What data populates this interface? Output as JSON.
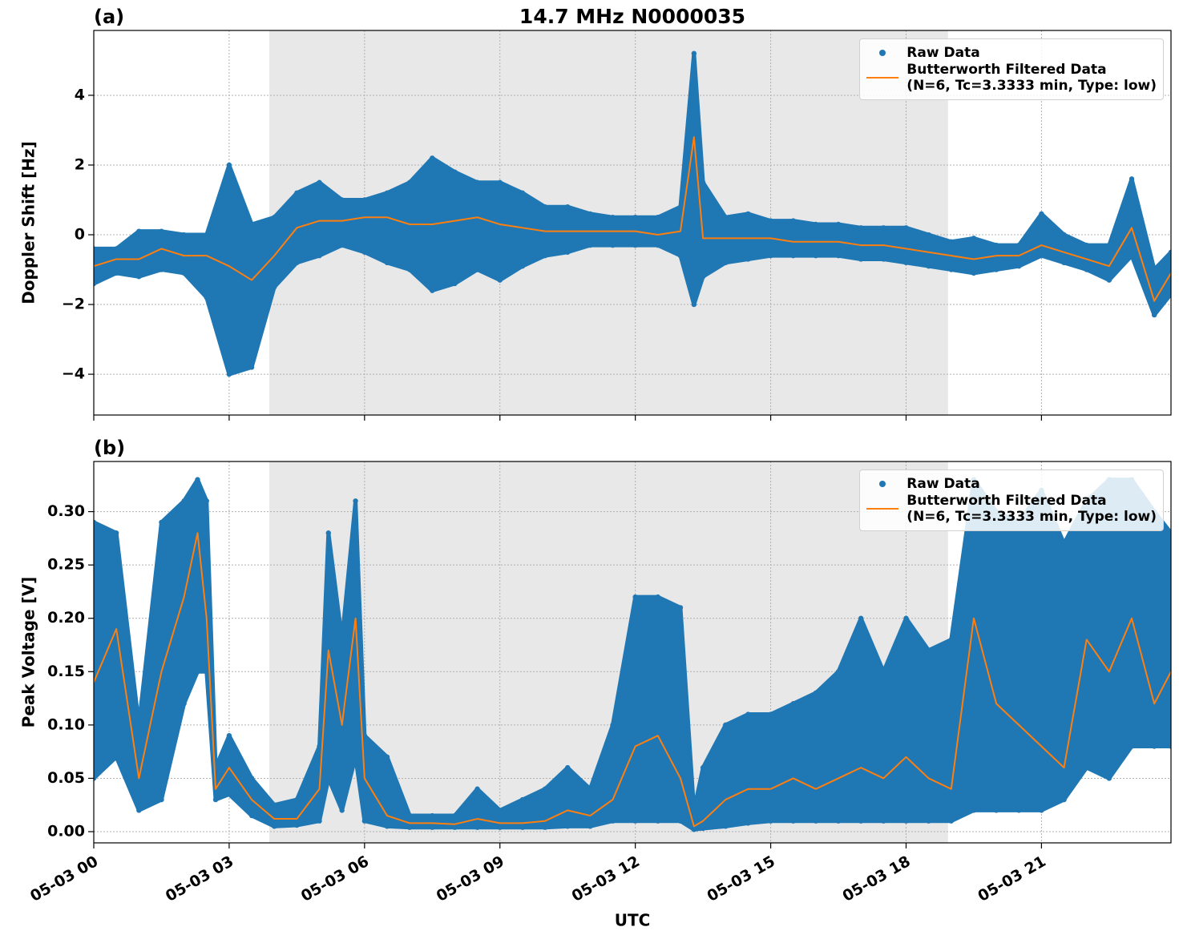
{
  "chart_data": [
    {
      "type": "scatter",
      "panel_label": "(a)",
      "title": "14.7 MHz N0000035",
      "ylabel": "Doppler Shift [Hz]",
      "xlim": [
        0,
        23.87
      ],
      "xticks": [
        0,
        3,
        6,
        9,
        12,
        15,
        18,
        21
      ],
      "ylim": [
        -5.17,
        5.86
      ],
      "yticks": [
        {
          "value": -4,
          "label": "−4"
        },
        {
          "value": -2,
          "label": "−2"
        },
        0,
        2,
        4
      ],
      "grid": true,
      "legend": "upper right",
      "shaded_span": [
        3.89,
        18.93
      ],
      "shade_color": "#e8e8e8",
      "series": [
        {
          "name": "Raw Data",
          "color": "#1f77b4",
          "marker": "dot",
          "x": [
            0,
            0.5,
            1,
            1.5,
            2,
            2.5,
            3,
            3.5,
            4,
            4.5,
            5,
            5.5,
            6,
            6.5,
            7,
            7.5,
            8,
            8.5,
            9,
            9.5,
            10,
            10.5,
            11,
            11.5,
            12,
            12.5,
            13,
            13.3,
            13.5,
            14,
            14.5,
            15,
            15.5,
            16,
            16.5,
            17,
            17.5,
            18,
            18.5,
            19,
            19.5,
            20,
            20.5,
            21,
            21.5,
            22,
            22.5,
            23,
            23.5,
            23.87,
            23.87,
            23.5,
            23,
            22.5,
            22,
            21.5,
            21,
            20.5,
            20,
            19.5,
            19,
            18.5,
            18,
            17.5,
            17,
            16.5,
            16,
            15.5,
            15,
            14.5,
            14,
            13.5,
            13.3,
            13,
            12.5,
            12,
            11.5,
            11,
            10.5,
            10,
            9.5,
            9,
            8.5,
            8,
            7.5,
            7,
            6.5,
            6,
            5.5,
            5,
            4.5,
            4,
            3.5,
            3,
            2.5,
            2,
            1.5,
            1,
            0.5,
            0
          ],
          "values": [
            -0.4,
            -0.4,
            0.1,
            0.1,
            0,
            0,
            2,
            0.3,
            0.5,
            1.2,
            1.5,
            1,
            1,
            1.2,
            1.5,
            2.2,
            1.8,
            1.5,
            1.5,
            1.2,
            0.8,
            0.8,
            0.6,
            0.5,
            0.5,
            0.5,
            0.8,
            5.2,
            1.5,
            0.5,
            0.6,
            0.4,
            0.4,
            0.3,
            0.3,
            0.2,
            0.2,
            0.2,
            0,
            -0.2,
            -0.1,
            -0.3,
            -0.3,
            0.6,
            0,
            -0.3,
            -0.3,
            1.6,
            -1,
            -0.5,
            -1.7,
            -2.3,
            -0.6,
            -1.3,
            -1,
            -0.8,
            -0.6,
            -0.9,
            -1,
            -1.1,
            -1,
            -0.9,
            -0.8,
            -0.7,
            -0.7,
            -0.6,
            -0.6,
            -0.6,
            -0.6,
            -0.7,
            -0.8,
            -1.2,
            -2,
            -0.6,
            -0.3,
            -0.3,
            -0.3,
            -0.3,
            -0.5,
            -0.6,
            -0.9,
            -1.3,
            -1,
            -1.4,
            -1.6,
            -1,
            -0.8,
            -0.5,
            -0.3,
            -0.6,
            -0.8,
            -1.5,
            -3.8,
            -4,
            -1.8,
            -1.1,
            -1,
            -1.2,
            -1.1,
            -1.4
          ]
        },
        {
          "name": "Butterworth Filtered Data\n(N=6, Tc=3.3333 min, Type: low)",
          "color": "#ff7f0e",
          "marker": "line",
          "x": [
            0,
            0.5,
            1,
            1.5,
            2,
            2.5,
            3,
            3.5,
            4,
            4.5,
            5,
            5.5,
            6,
            6.5,
            7,
            7.5,
            8,
            8.5,
            9,
            9.5,
            10,
            10.5,
            11,
            11.5,
            12,
            12.5,
            13,
            13.3,
            13.5,
            14,
            14.5,
            15,
            15.5,
            16,
            16.5,
            17,
            17.5,
            18,
            18.5,
            19,
            19.5,
            20,
            20.5,
            21,
            21.5,
            22,
            22.5,
            23,
            23.5,
            23.87
          ],
          "values": [
            -0.9,
            -0.7,
            -0.7,
            -0.4,
            -0.6,
            -0.6,
            -0.9,
            -1.3,
            -0.6,
            0.2,
            0.4,
            0.4,
            0.5,
            0.5,
            0.3,
            0.3,
            0.4,
            0.5,
            0.3,
            0.2,
            0.1,
            0.1,
            0.1,
            0.1,
            0.1,
            0,
            0.1,
            2.8,
            -0.1,
            -0.1,
            -0.1,
            -0.1,
            -0.2,
            -0.2,
            -0.2,
            -0.3,
            -0.3,
            -0.4,
            -0.5,
            -0.6,
            -0.7,
            -0.6,
            -0.6,
            -0.3,
            -0.5,
            -0.7,
            -0.9,
            0.2,
            -1.9,
            -1.1
          ]
        }
      ]
    },
    {
      "type": "scatter",
      "panel_label": "(b)",
      "ylabel": "Peak Voltage [V]",
      "xlabel": "UTC",
      "xlim": [
        0,
        23.87
      ],
      "xticks": [
        {
          "value": 0,
          "label": "05-03 00"
        },
        {
          "value": 3,
          "label": "05-03 03"
        },
        {
          "value": 6,
          "label": "05-03 06"
        },
        {
          "value": 9,
          "label": "05-03 09"
        },
        {
          "value": 12,
          "label": "05-03 12"
        },
        {
          "value": 15,
          "label": "05-03 15"
        },
        {
          "value": 18,
          "label": "05-03 18"
        },
        {
          "value": 21,
          "label": "05-03 21"
        }
      ],
      "ylim": [
        -0.0105,
        0.347
      ],
      "yticks": [
        {
          "value": 0,
          "label": "0.00"
        },
        0.05,
        {
          "value": 0.1,
          "label": "0.10"
        },
        0.15,
        {
          "value": 0.2,
          "label": "0.20"
        },
        0.25,
        {
          "value": 0.3,
          "label": "0.30"
        }
      ],
      "grid": true,
      "legend": "upper right",
      "shaded_span": [
        3.89,
        18.93
      ],
      "shade_color": "#e8e8e8",
      "series": [
        {
          "name": "Raw Data",
          "color": "#1f77b4",
          "marker": "dot",
          "x": [
            0,
            0.5,
            1,
            1.5,
            2,
            2.3,
            2.5,
            2.7,
            3,
            3.5,
            4,
            4.5,
            5,
            5.2,
            5.5,
            5.8,
            6,
            6.5,
            7,
            7.5,
            8,
            8.5,
            9,
            9.5,
            10,
            10.5,
            11,
            11.5,
            12,
            12.5,
            13,
            13.3,
            13.5,
            14,
            14.5,
            15,
            15.5,
            16,
            16.5,
            17,
            17.5,
            18,
            18.5,
            19,
            19.5,
            20,
            20.5,
            21,
            21.5,
            22,
            22.5,
            23,
            23.5,
            23.87,
            23.87,
            23.5,
            23,
            22.5,
            22,
            21.5,
            21,
            20.5,
            20,
            19.5,
            19,
            18.5,
            18,
            17.5,
            17,
            16.5,
            16,
            15.5,
            15,
            14.5,
            14,
            13.5,
            13.3,
            13,
            12.5,
            12,
            11.5,
            11,
            10.5,
            10,
            9.5,
            9,
            8.5,
            8,
            7.5,
            7,
            6.5,
            6,
            5.8,
            5.5,
            5.2,
            5,
            4.5,
            4,
            3.5,
            3,
            2.7,
            2.5,
            2.3,
            2,
            1.5,
            1,
            0.5,
            0
          ],
          "values": [
            0.29,
            0.28,
            0.1,
            0.29,
            0.31,
            0.33,
            0.31,
            0.06,
            0.09,
            0.05,
            0.025,
            0.03,
            0.08,
            0.28,
            0.18,
            0.31,
            0.09,
            0.07,
            0.015,
            0.015,
            0.015,
            0.04,
            0.02,
            0.03,
            0.04,
            0.06,
            0.04,
            0.1,
            0.22,
            0.22,
            0.21,
            0.02,
            0.06,
            0.1,
            0.11,
            0.11,
            0.12,
            0.13,
            0.15,
            0.2,
            0.15,
            0.2,
            0.17,
            0.18,
            0.33,
            0.3,
            0.29,
            0.32,
            0.27,
            0.31,
            0.33,
            0.33,
            0.3,
            0.28,
            0.08,
            0.08,
            0.08,
            0.05,
            0.06,
            0.03,
            0.02,
            0.02,
            0.02,
            0.02,
            0.01,
            0.01,
            0.01,
            0.01,
            0.01,
            0.01,
            0.01,
            0.01,
            0.01,
            0.008,
            0.005,
            0.003,
            0.002,
            0.01,
            0.01,
            0.01,
            0.01,
            0.005,
            0.005,
            0.004,
            0.004,
            0.004,
            0.004,
            0.004,
            0.004,
            0.004,
            0.005,
            0.01,
            0.07,
            0.02,
            0.05,
            0.01,
            0.006,
            0.005,
            0.015,
            0.035,
            0.03,
            0.15,
            0.15,
            0.12,
            0.03,
            0.02,
            0.07,
            0.05
          ]
        },
        {
          "name": "Butterworth Filtered Data\n(N=6, Tc=3.3333 min, Type: low)",
          "color": "#ff7f0e",
          "marker": "line",
          "x": [
            0,
            0.5,
            1,
            1.5,
            2,
            2.3,
            2.5,
            2.7,
            3,
            3.5,
            4,
            4.5,
            5,
            5.2,
            5.5,
            5.8,
            6,
            6.5,
            7,
            7.5,
            8,
            8.5,
            9,
            9.5,
            10,
            10.5,
            11,
            11.5,
            12,
            12.5,
            13,
            13.3,
            13.5,
            14,
            14.5,
            15,
            15.5,
            16,
            16.5,
            17,
            17.5,
            18,
            18.5,
            19,
            19.5,
            20,
            20.5,
            21,
            21.5,
            22,
            22.5,
            23,
            23.5,
            23.87
          ],
          "values": [
            0.14,
            0.19,
            0.05,
            0.15,
            0.22,
            0.28,
            0.2,
            0.04,
            0.06,
            0.03,
            0.012,
            0.012,
            0.04,
            0.17,
            0.1,
            0.2,
            0.05,
            0.015,
            0.008,
            0.008,
            0.007,
            0.012,
            0.008,
            0.008,
            0.01,
            0.02,
            0.015,
            0.03,
            0.08,
            0.09,
            0.05,
            0.005,
            0.01,
            0.03,
            0.04,
            0.04,
            0.05,
            0.04,
            0.05,
            0.06,
            0.05,
            0.07,
            0.05,
            0.04,
            0.2,
            0.12,
            0.1,
            0.08,
            0.06,
            0.18,
            0.15,
            0.2,
            0.12,
            0.15
          ]
        }
      ]
    }
  ]
}
